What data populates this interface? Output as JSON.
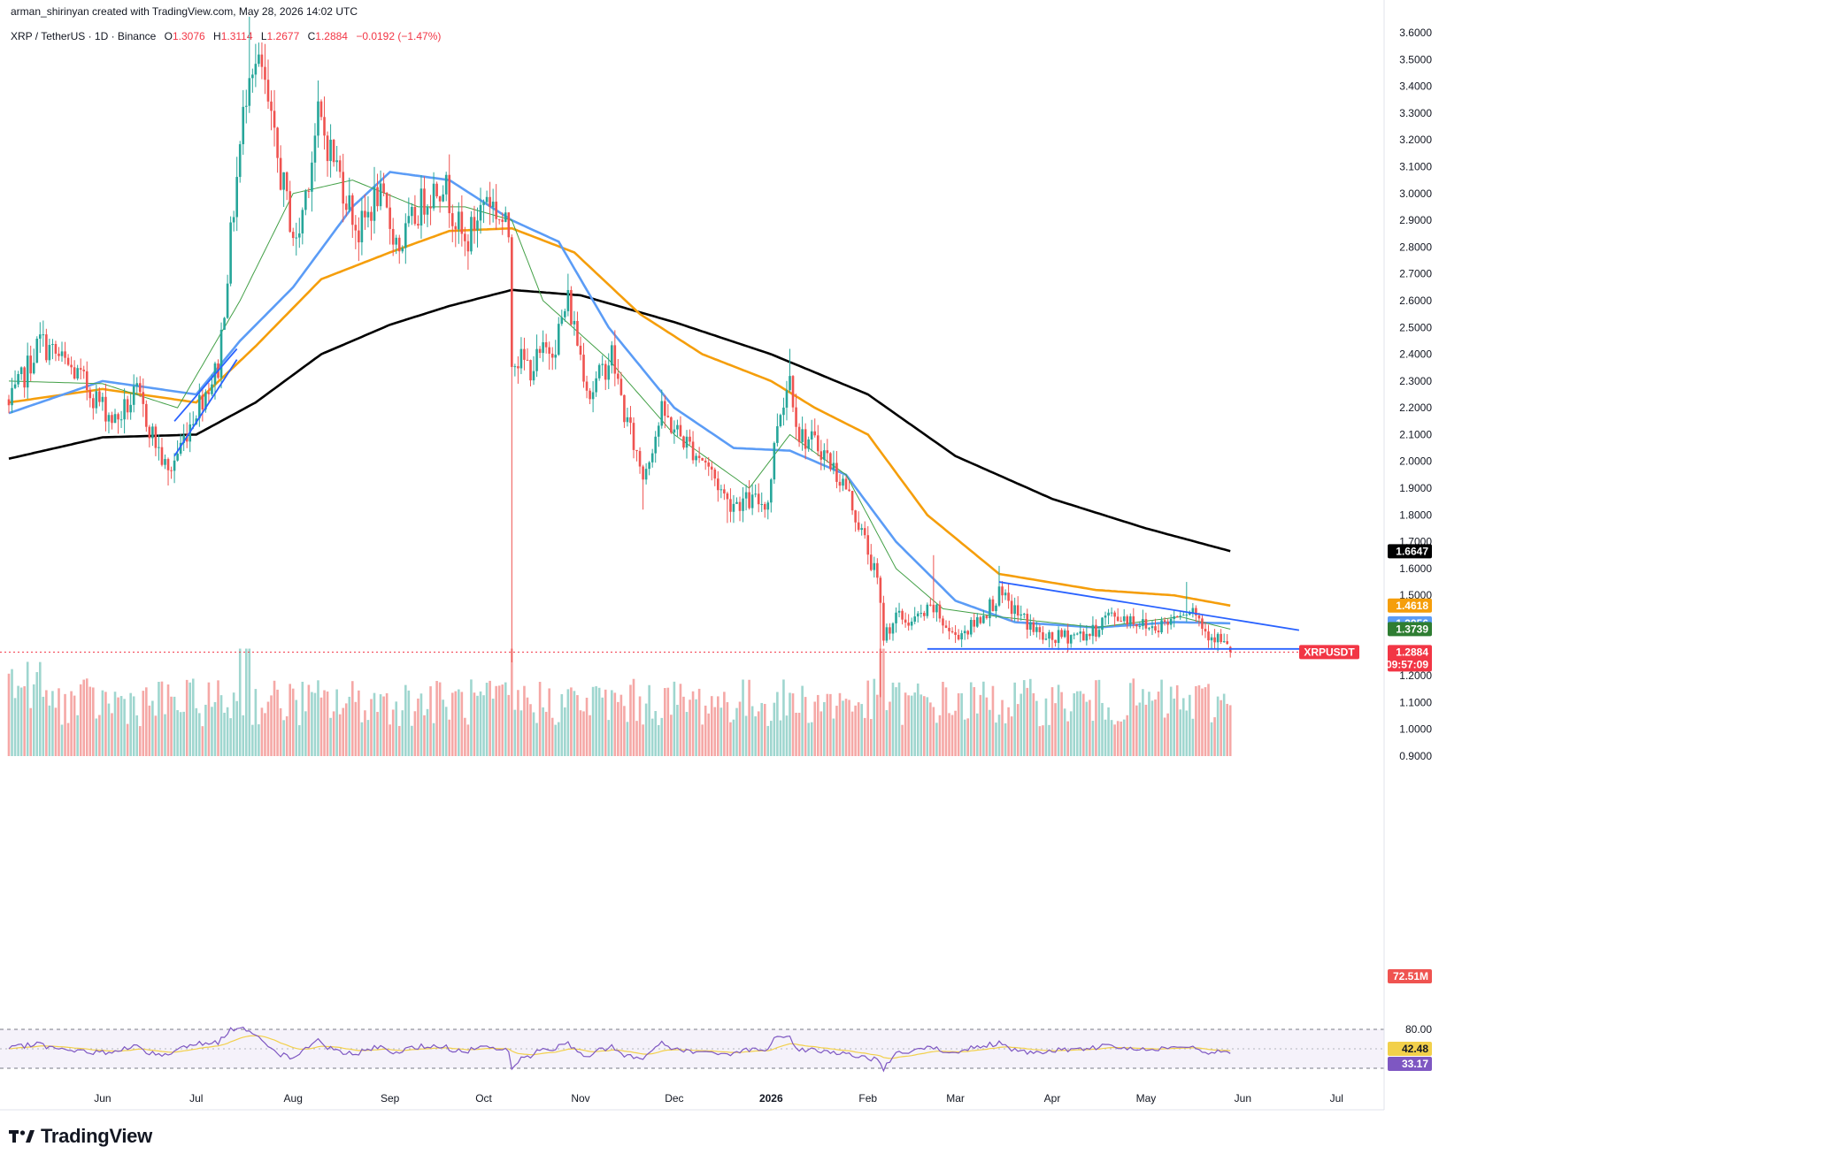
{
  "credit": "arman_shirinyan created with TradingView.com, May 28, 2026 14:02 UTC",
  "legend": {
    "symbol": "XRP / TetherUS · 1D · Binance",
    "o_label": "O",
    "o_value": "1.3076",
    "h_label": "H",
    "h_value": "1.3114",
    "l_label": "L",
    "l_value": "1.2677",
    "c_label": "C",
    "c_value": "1.2884",
    "change": "−0.0192 (−1.47%)"
  },
  "brand": {
    "text": "TradingView",
    "icon": "tradingview-logo-icon"
  },
  "colors": {
    "up": "#26a69a",
    "down": "#ef5350",
    "vol_up": "#9fd6cf",
    "vol_down": "#f5a8a6",
    "ema20": "#43a047",
    "ema50": "#5b9cf6",
    "ema100": "#f59e0b",
    "ema200": "#000000",
    "trend": "#2962ff",
    "rsi": "#7e57c2",
    "rsi_ma": "#f2d04b",
    "price_line": "#f23645"
  },
  "chart_data": {
    "type": "candlestick",
    "symbol": "XRP / TetherUS",
    "interval": "1D",
    "exchange": "Binance",
    "ylim": [
      0.9,
      3.65
    ],
    "y_ticks": [
      "3.6000",
      "3.5000",
      "3.4000",
      "3.3000",
      "3.2000",
      "3.1000",
      "3.0000",
      "2.9000",
      "2.8000",
      "2.7000",
      "2.6000",
      "2.5000",
      "2.4000",
      "2.3000",
      "2.2000",
      "2.1000",
      "2.0000",
      "1.9000",
      "1.8000",
      "1.7000",
      "1.6000",
      "1.5000",
      "1.4000",
      "1.3000",
      "1.2000",
      "1.1000",
      "1.0000",
      "0.9000"
    ],
    "x_ticks": [
      {
        "label": "Jun",
        "date": "2025-06-01"
      },
      {
        "label": "Jul",
        "date": "2025-07-01"
      },
      {
        "label": "Aug",
        "date": "2025-08-01"
      },
      {
        "label": "Sep",
        "date": "2025-09-01"
      },
      {
        "label": "Oct",
        "date": "2025-10-01"
      },
      {
        "label": "Nov",
        "date": "2025-11-01"
      },
      {
        "label": "Dec",
        "date": "2025-12-01"
      },
      {
        "label": "2026",
        "date": "2026-01-01",
        "bold": true
      },
      {
        "label": "Feb",
        "date": "2026-02-01"
      },
      {
        "label": "Mar",
        "date": "2026-03-01"
      },
      {
        "label": "Apr",
        "date": "2026-04-01"
      },
      {
        "label": "May",
        "date": "2026-05-01"
      },
      {
        "label": "Jun",
        "date": "2026-06-01"
      },
      {
        "label": "Jul",
        "date": "2026-07-01"
      }
    ],
    "date_range": [
      "2025-05-02",
      "2026-05-28"
    ],
    "close_anchors": [
      [
        "2025-05-02",
        2.2
      ],
      [
        "2025-05-12",
        2.45
      ],
      [
        "2025-05-24",
        2.32
      ],
      [
        "2025-06-05",
        2.15
      ],
      [
        "2025-06-12",
        2.25
      ],
      [
        "2025-06-22",
        1.95
      ],
      [
        "2025-07-01",
        2.2
      ],
      [
        "2025-07-08",
        2.35
      ],
      [
        "2025-07-13",
        2.95
      ],
      [
        "2025-07-18",
        3.5
      ],
      [
        "2025-07-22",
        3.45
      ],
      [
        "2025-07-26",
        3.18
      ],
      [
        "2025-08-02",
        2.8
      ],
      [
        "2025-08-09",
        3.28
      ],
      [
        "2025-08-15",
        3.1
      ],
      [
        "2025-08-22",
        2.85
      ],
      [
        "2025-08-28",
        3.0
      ],
      [
        "2025-09-04",
        2.8
      ],
      [
        "2025-09-12",
        2.98
      ],
      [
        "2025-09-18",
        3.05
      ],
      [
        "2025-09-25",
        2.8
      ],
      [
        "2025-10-02",
        3.0
      ],
      [
        "2025-10-09",
        2.85
      ],
      [
        "2025-10-10",
        2.4
      ],
      [
        "2025-10-16",
        2.35
      ],
      [
        "2025-10-24",
        2.45
      ],
      [
        "2025-10-28",
        2.6
      ],
      [
        "2025-11-04",
        2.25
      ],
      [
        "2025-11-11",
        2.4
      ],
      [
        "2025-11-15",
        2.18
      ],
      [
        "2025-11-21",
        1.95
      ],
      [
        "2025-11-27",
        2.18
      ],
      [
        "2025-12-04",
        2.08
      ],
      [
        "2025-12-11",
        2.0
      ],
      [
        "2025-12-18",
        1.85
      ],
      [
        "2025-12-25",
        1.85
      ],
      [
        "2025-12-31",
        1.85
      ],
      [
        "2026-01-03",
        2.15
      ],
      [
        "2026-01-07",
        2.32
      ],
      [
        "2026-01-10",
        2.1
      ],
      [
        "2026-01-17",
        2.05
      ],
      [
        "2026-01-25",
        1.9
      ],
      [
        "2026-01-31",
        1.7
      ],
      [
        "2026-02-04",
        1.55
      ],
      [
        "2026-02-06",
        1.35
      ],
      [
        "2026-02-10",
        1.42
      ],
      [
        "2026-02-15",
        1.4
      ],
      [
        "2026-02-22",
        1.45
      ],
      [
        "2026-02-28",
        1.35
      ],
      [
        "2026-03-06",
        1.38
      ],
      [
        "2026-03-15",
        1.5
      ],
      [
        "2026-03-22",
        1.42
      ],
      [
        "2026-03-30",
        1.33
      ],
      [
        "2026-04-06",
        1.35
      ],
      [
        "2026-04-14",
        1.36
      ],
      [
        "2026-04-18",
        1.42
      ],
      [
        "2026-04-25",
        1.42
      ],
      [
        "2026-05-02",
        1.38
      ],
      [
        "2026-05-08",
        1.4
      ],
      [
        "2026-05-12",
        1.45
      ],
      [
        "2026-05-16",
        1.45
      ],
      [
        "2026-05-20",
        1.37
      ],
      [
        "2026-05-24",
        1.34
      ],
      [
        "2026-05-28",
        1.2884
      ]
    ],
    "ohlc_last": {
      "open": 1.3076,
      "high": 1.3114,
      "low": 1.2677,
      "close": 1.2884,
      "change": -0.0192,
      "change_pct": -1.47
    },
    "series": [
      {
        "name": "EMA 200",
        "color": "#000000",
        "last": 1.6647,
        "points": [
          [
            "2025-05-02",
            2.01
          ],
          [
            "2025-06-01",
            2.09
          ],
          [
            "2025-07-01",
            2.1
          ],
          [
            "2025-07-20",
            2.22
          ],
          [
            "2025-08-10",
            2.4
          ],
          [
            "2025-09-01",
            2.51
          ],
          [
            "2025-09-20",
            2.58
          ],
          [
            "2025-10-10",
            2.64
          ],
          [
            "2025-11-01",
            2.62
          ],
          [
            "2025-12-01",
            2.52
          ],
          [
            "2026-01-01",
            2.4
          ],
          [
            "2026-02-01",
            2.25
          ],
          [
            "2026-03-01",
            2.02
          ],
          [
            "2026-04-01",
            1.86
          ],
          [
            "2026-05-01",
            1.75
          ],
          [
            "2026-05-28",
            1.665
          ]
        ]
      },
      {
        "name": "EMA 100",
        "color": "#f59e0b",
        "last": 1.4618,
        "points": [
          [
            "2025-05-02",
            2.22
          ],
          [
            "2025-06-01",
            2.27
          ],
          [
            "2025-07-01",
            2.22
          ],
          [
            "2025-07-20",
            2.43
          ],
          [
            "2025-08-10",
            2.68
          ],
          [
            "2025-09-01",
            2.78
          ],
          [
            "2025-09-20",
            2.86
          ],
          [
            "2025-10-10",
            2.87
          ],
          [
            "2025-10-30",
            2.78
          ],
          [
            "2025-11-20",
            2.55
          ],
          [
            "2025-12-10",
            2.4
          ],
          [
            "2026-01-01",
            2.3
          ],
          [
            "2026-01-15",
            2.2
          ],
          [
            "2026-02-01",
            2.1
          ],
          [
            "2026-02-20",
            1.8
          ],
          [
            "2026-03-15",
            1.58
          ],
          [
            "2026-04-15",
            1.52
          ],
          [
            "2026-05-10",
            1.5
          ],
          [
            "2026-05-28",
            1.4618
          ]
        ]
      },
      {
        "name": "EMA 50",
        "color": "#5b9cf6",
        "last": 1.3956,
        "points": [
          [
            "2025-05-02",
            2.18
          ],
          [
            "2025-06-01",
            2.3
          ],
          [
            "2025-07-01",
            2.25
          ],
          [
            "2025-07-15",
            2.45
          ],
          [
            "2025-08-01",
            2.65
          ],
          [
            "2025-08-20",
            2.95
          ],
          [
            "2025-09-01",
            3.08
          ],
          [
            "2025-09-20",
            3.05
          ],
          [
            "2025-10-10",
            2.9
          ],
          [
            "2025-10-25",
            2.82
          ],
          [
            "2025-11-10",
            2.5
          ],
          [
            "2025-12-01",
            2.2
          ],
          [
            "2025-12-20",
            2.05
          ],
          [
            "2026-01-07",
            2.04
          ],
          [
            "2026-01-25",
            1.95
          ],
          [
            "2026-02-10",
            1.7
          ],
          [
            "2026-03-01",
            1.48
          ],
          [
            "2026-03-20",
            1.4
          ],
          [
            "2026-04-15",
            1.38
          ],
          [
            "2026-05-10",
            1.4
          ],
          [
            "2026-05-28",
            1.3956
          ]
        ]
      },
      {
        "name": "EMA 20",
        "color": "#43a047",
        "last": 1.3739,
        "points": [
          [
            "2025-05-02",
            2.3
          ],
          [
            "2025-06-01",
            2.29
          ],
          [
            "2025-06-25",
            2.2
          ],
          [
            "2025-07-15",
            2.6
          ],
          [
            "2025-08-01",
            3.0
          ],
          [
            "2025-08-20",
            3.05
          ],
          [
            "2025-09-10",
            2.95
          ],
          [
            "2025-09-25",
            2.95
          ],
          [
            "2025-10-10",
            2.9
          ],
          [
            "2025-10-20",
            2.6
          ],
          [
            "2025-11-10",
            2.38
          ],
          [
            "2025-12-01",
            2.1
          ],
          [
            "2025-12-25",
            1.9
          ],
          [
            "2026-01-07",
            2.1
          ],
          [
            "2026-01-25",
            1.95
          ],
          [
            "2026-02-10",
            1.6
          ],
          [
            "2026-02-25",
            1.45
          ],
          [
            "2026-03-15",
            1.42
          ],
          [
            "2026-04-15",
            1.38
          ],
          [
            "2026-05-12",
            1.42
          ],
          [
            "2026-05-28",
            1.3739
          ]
        ]
      }
    ],
    "trendlines": [
      {
        "name": "rising channel lower",
        "points": [
          [
            "2025-06-24",
            2.02
          ],
          [
            "2025-07-14",
            2.38
          ]
        ]
      },
      {
        "name": "rising channel upper",
        "points": [
          [
            "2025-06-24",
            2.15
          ],
          [
            "2025-07-14",
            2.42
          ]
        ]
      },
      {
        "name": "descending resistance",
        "points": [
          [
            "2026-03-15",
            1.55
          ],
          [
            "2026-06-19",
            1.37
          ]
        ]
      },
      {
        "name": "horizontal support",
        "points": [
          [
            "2026-02-20",
            1.3
          ],
          [
            "2026-06-20",
            1.3
          ]
        ]
      }
    ],
    "price_badges": [
      {
        "name": "ema200-price-badge",
        "value": "1.6647",
        "price": 1.6647,
        "bg": "#000000",
        "fg": "#ffffff"
      },
      {
        "name": "ema100-price-badge",
        "value": "1.4618",
        "price": 1.4618,
        "bg": "#f59e0b",
        "fg": "#ffffff"
      },
      {
        "name": "ema50-price-badge",
        "value": "1.3956",
        "price": 1.3956,
        "bg": "#5b9cf6",
        "fg": "#ffffff"
      },
      {
        "name": "ema20-price-badge",
        "value": "1.3739",
        "price": 1.3739,
        "bg": "#2e7d32",
        "fg": "#ffffff"
      }
    ],
    "last_price_badge": {
      "symbol": "XRPUSDT",
      "value": "1.2884",
      "countdown": "09:57:09",
      "price": 1.2884,
      "bg": "#f23645"
    },
    "volume_badge": {
      "value": "72.51M",
      "bg": "#ef5350"
    },
    "rsi": {
      "upper": 80,
      "lower": 20,
      "label_upper": "80.00",
      "value": "33.17",
      "ma_value": "42.48",
      "value_bg": "#7e57c2",
      "ma_bg": "#f2d04b"
    },
    "grid": false
  }
}
